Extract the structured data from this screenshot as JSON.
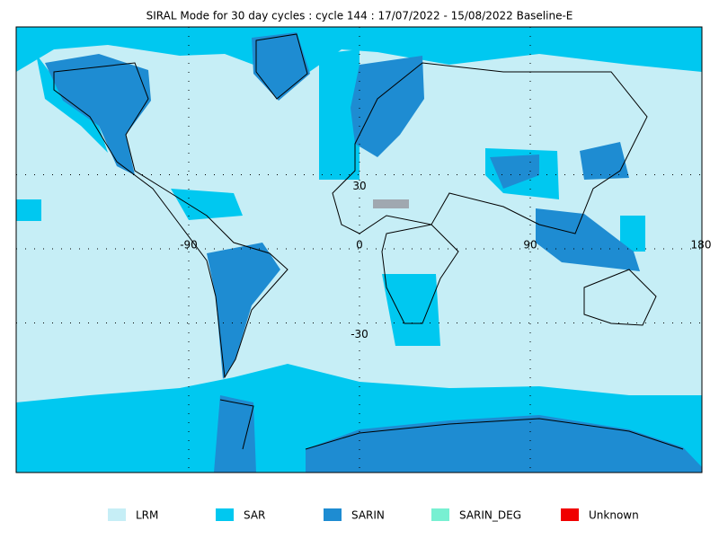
{
  "map": {
    "title": "SIRAL Mode for 30 day cycles : cycle 144 : 17/07/2022 - 15/08/2022 Baseline-E",
    "lon_labels": [
      -90,
      0,
      90,
      180
    ],
    "lat_labels": [
      30,
      -30
    ],
    "legend": [
      {
        "label": "LRM",
        "color": "#c6eef6"
      },
      {
        "label": "SAR",
        "color": "#00c8f0"
      },
      {
        "label": "SARIN",
        "color": "#1e8cd2"
      },
      {
        "label": "SARIN_DEG",
        "color": "#78f0d2"
      },
      {
        "label": "Unknown",
        "color": "#f00000"
      }
    ]
  }
}
